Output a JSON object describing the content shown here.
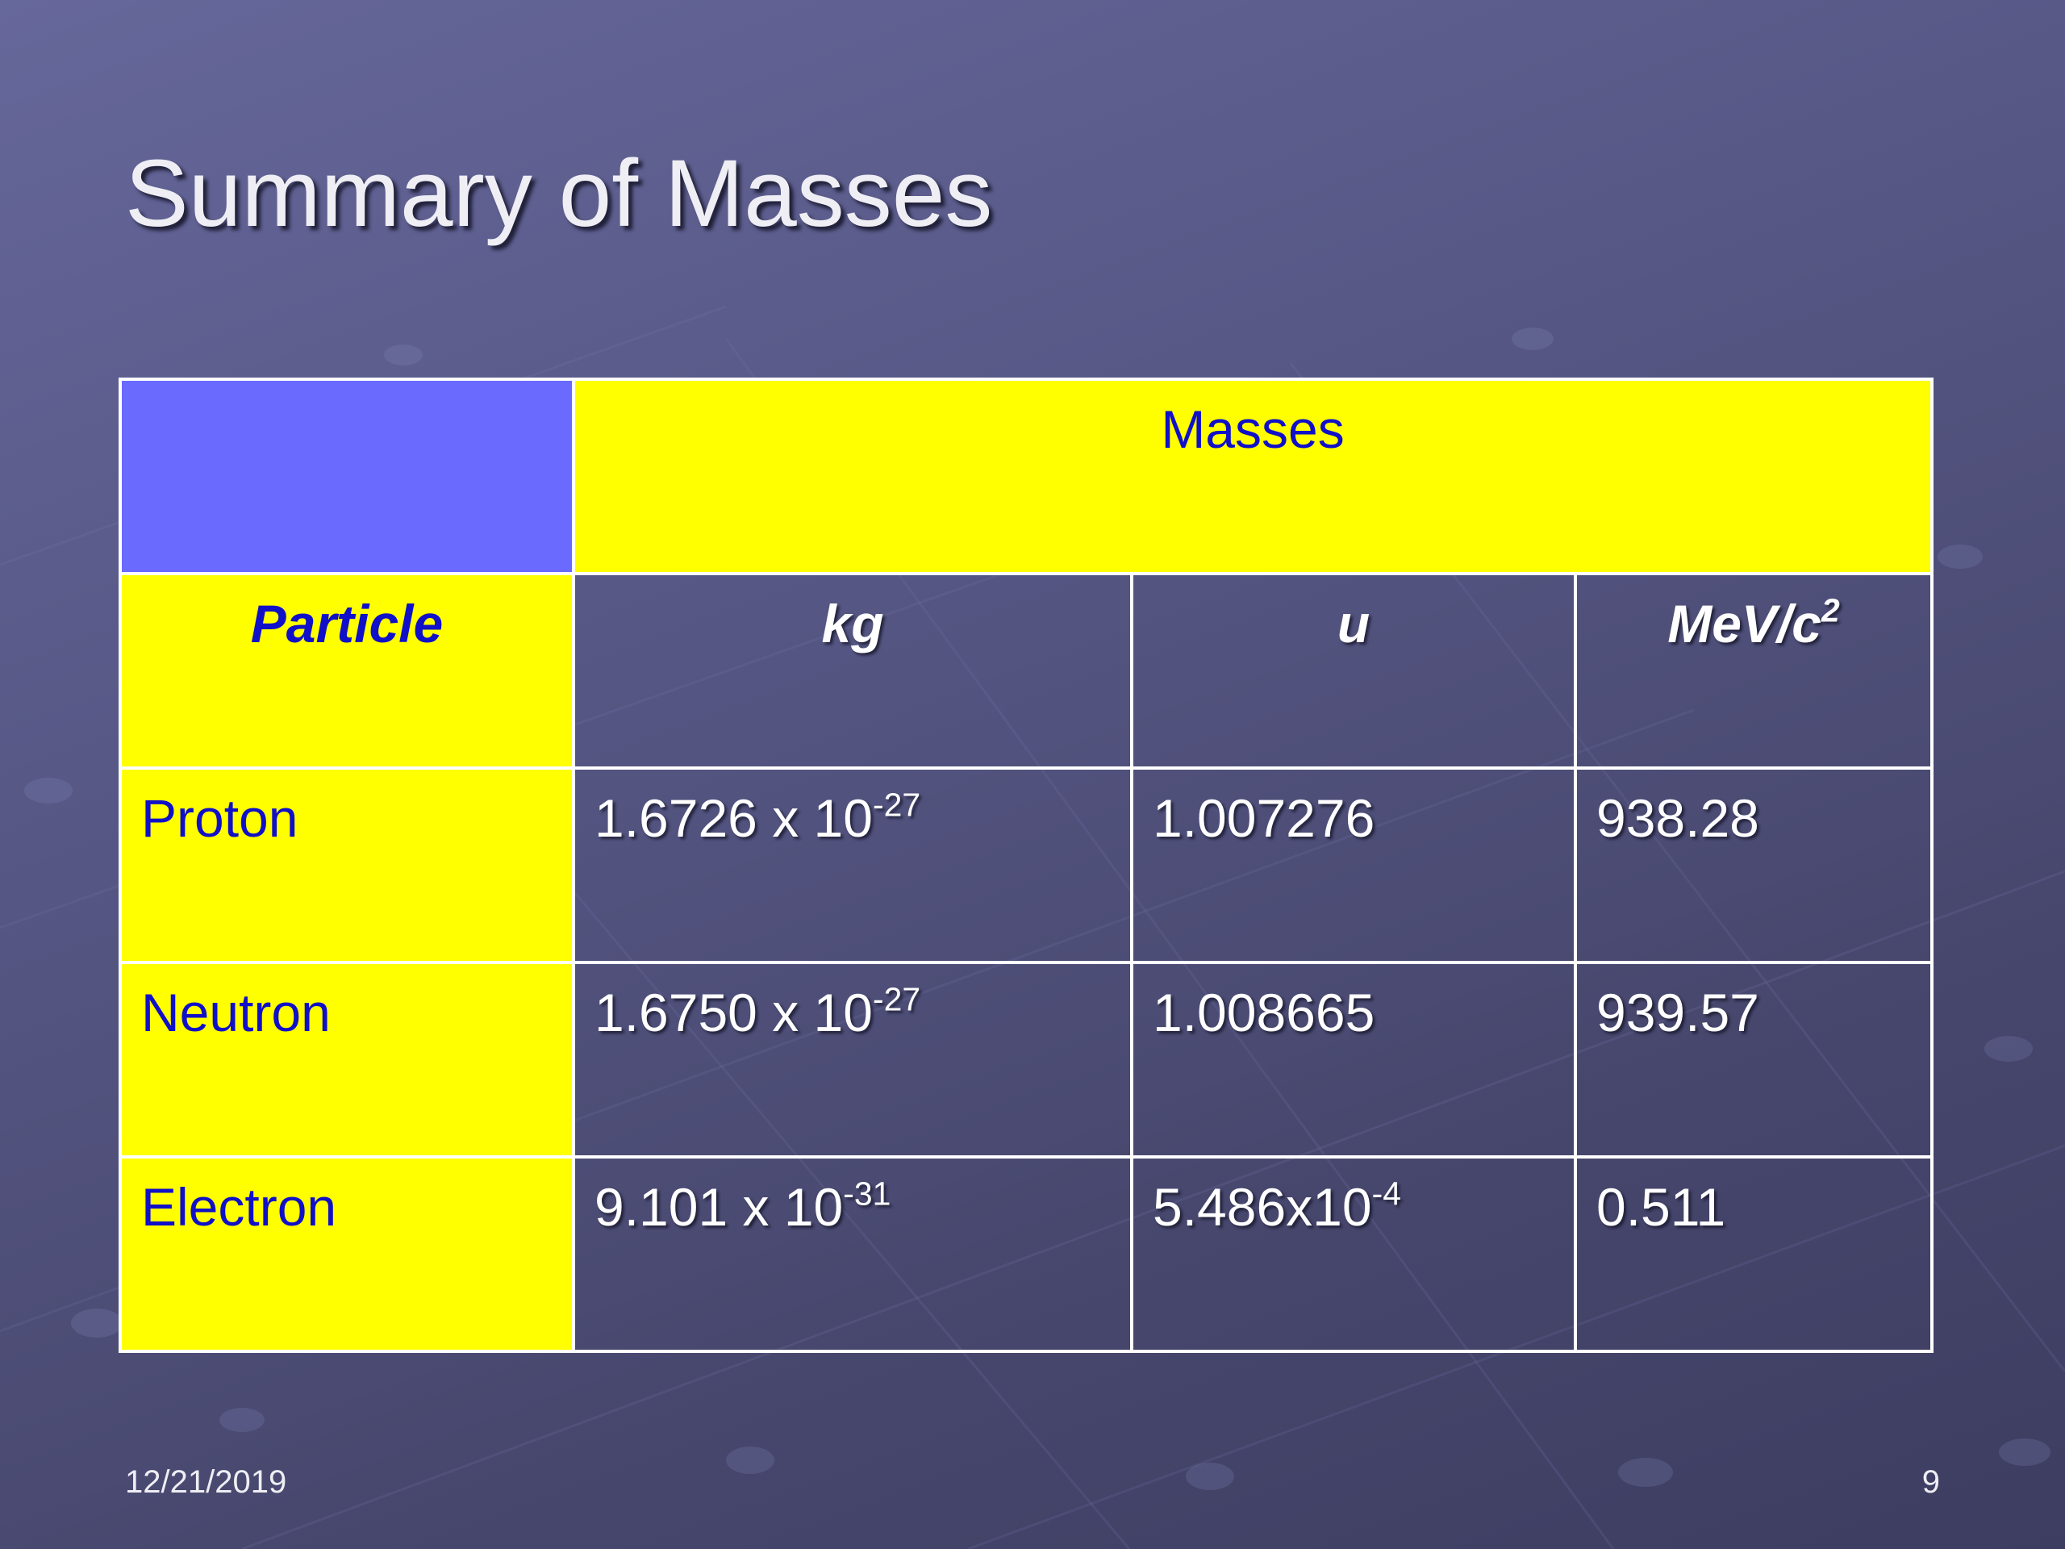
{
  "slide": {
    "title": "Summary of Masses",
    "footer_date": "12/21/2019",
    "page_number": "9"
  },
  "table": {
    "group_header": "Masses",
    "col_header_particle": "Particle",
    "col_header_kg": "kg",
    "col_header_u": "u",
    "col_header_mev_base": "MeV/c",
    "col_header_mev_exp": "2",
    "rows": [
      {
        "particle": "Proton",
        "kg_mantissa": "1.6726 x 10",
        "kg_exp": "-27",
        "u_base": "1.007276",
        "u_exp": "",
        "mev": "938.28"
      },
      {
        "particle": "Neutron",
        "kg_mantissa": "1.6750 x 10",
        "kg_exp": "-27",
        "u_base": "1.008665",
        "u_exp": "",
        "mev": "939.57"
      },
      {
        "particle": "Electron",
        "kg_mantissa": "9.101 x 10",
        "kg_exp": "-31",
        "u_base": "5.486x10",
        "u_exp": "-4",
        "mev": "0.511"
      }
    ]
  },
  "colors": {
    "background": "#575886",
    "header_yellow": "#ffff00",
    "corner_blue": "#6a6aff",
    "row_label_text": "#1010c8",
    "body_text": "#ffffff"
  }
}
